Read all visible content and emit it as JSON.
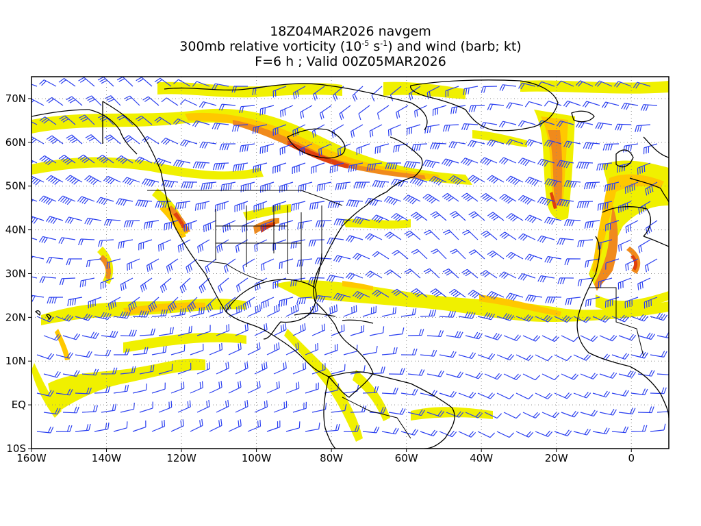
{
  "title": {
    "line1": "18Z04MAR2026 navgem",
    "line2_prefix": "300mb relative vorticity (10",
    "line2_exp1": "-5",
    "line2_mid": " s",
    "line2_exp2": "-1",
    "line2_suffix": ") and wind (barb; kt)",
    "line3": "F=6 h ; Valid 00Z05MAR2026"
  },
  "map": {
    "lon_range": [
      -160,
      10
    ],
    "lat_range": [
      -10,
      75
    ],
    "gridlines": "dotted",
    "colors": {
      "vorticity_low": "#f0f000",
      "vorticity_mid": "#ffc800",
      "vorticity_high": "#f08a1c",
      "vorticity_max": "#e0400e",
      "barbs": "#2a3ff0",
      "coastlines": "#000000"
    }
  },
  "axes": {
    "x_ticks": [
      {
        "lon": -160,
        "label": "160W"
      },
      {
        "lon": -140,
        "label": "140W"
      },
      {
        "lon": -120,
        "label": "120W"
      },
      {
        "lon": -100,
        "label": "100W"
      },
      {
        "lon": -80,
        "label": "80W"
      },
      {
        "lon": -60,
        "label": "60W"
      },
      {
        "lon": -40,
        "label": "40W"
      },
      {
        "lon": -20,
        "label": "20W"
      },
      {
        "lon": 0,
        "label": "0"
      }
    ],
    "y_ticks": [
      {
        "lat": 70,
        "label": "70N"
      },
      {
        "lat": 60,
        "label": "60N"
      },
      {
        "lat": 50,
        "label": "50N"
      },
      {
        "lat": 40,
        "label": "40N"
      },
      {
        "lat": 30,
        "label": "30N"
      },
      {
        "lat": 20,
        "label": "20N"
      },
      {
        "lat": 10,
        "label": "10N"
      },
      {
        "lat": 0,
        "label": "EQ"
      },
      {
        "lat": -10,
        "label": "10S"
      }
    ]
  }
}
